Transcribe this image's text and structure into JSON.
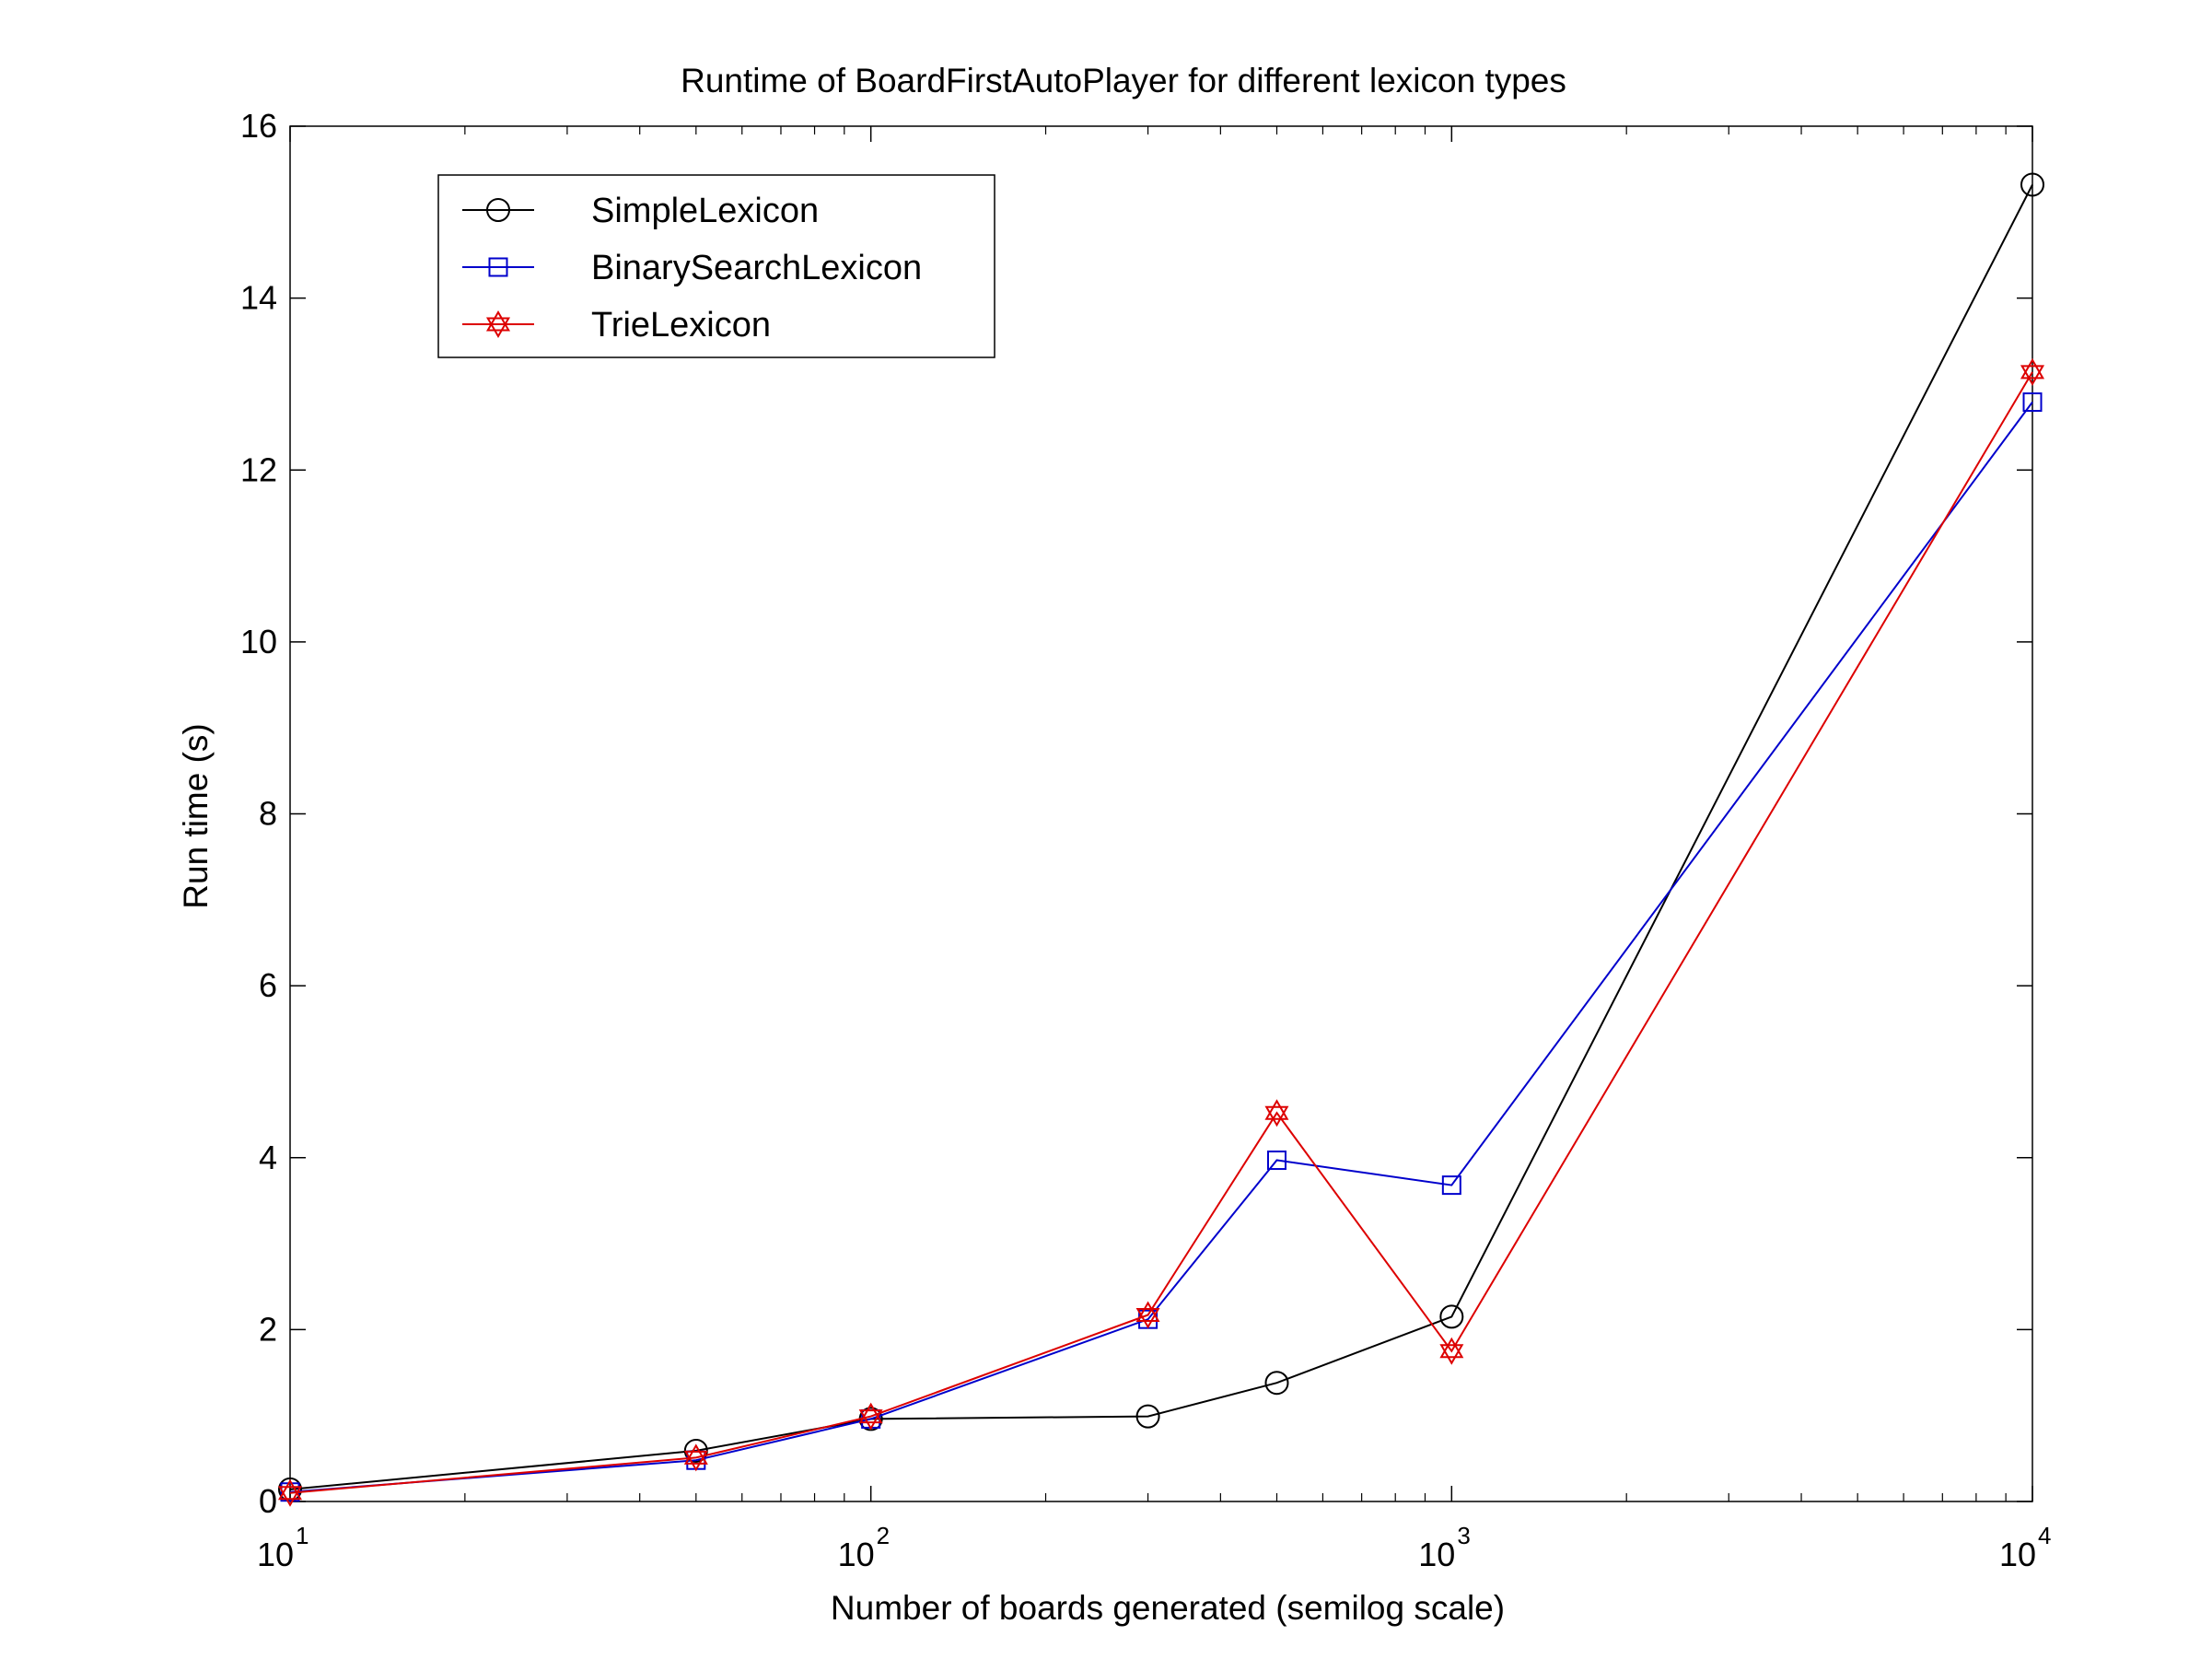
{
  "chart_data": {
    "type": "line",
    "title": "Runtime of BoardFirstAutoPlayer for different lexicon types",
    "xlabel": "Number of boards generated (semilog scale)",
    "ylabel": "Run time (s)",
    "xscale": "log",
    "xlim": [
      10,
      10000
    ],
    "ylim": [
      0,
      16
    ],
    "xticks": [
      {
        "value": 10,
        "base": "10",
        "exp": "1"
      },
      {
        "value": 100,
        "base": "10",
        "exp": "2"
      },
      {
        "value": 1000,
        "base": "10",
        "exp": "3"
      },
      {
        "value": 10000,
        "base": "10",
        "exp": "4"
      }
    ],
    "yticks": [
      0,
      2,
      4,
      6,
      8,
      10,
      12,
      14,
      16
    ],
    "ytick_labels": [
      "0",
      "2",
      "4",
      "6",
      "8",
      "10",
      "12",
      "14",
      "16"
    ],
    "grid": false,
    "legend": "top-left",
    "series": [
      {
        "name": "SimpleLexicon",
        "color": "#000000",
        "marker": "circle",
        "x": [
          10,
          50,
          100,
          300,
          500,
          1000,
          10000
        ],
        "y": [
          0.14,
          0.59,
          0.96,
          0.99,
          1.38,
          2.15,
          15.32
        ]
      },
      {
        "name": "BinarySearchLexicon",
        "color": "#0000cc",
        "marker": "square",
        "x": [
          10,
          50,
          100,
          300,
          500,
          1000,
          10000
        ],
        "y": [
          0.11,
          0.48,
          0.96,
          2.12,
          3.97,
          3.68,
          12.79
        ]
      },
      {
        "name": "TrieLexicon",
        "color": "#dd0000",
        "marker": "hexagram",
        "x": [
          10,
          50,
          100,
          300,
          500,
          1000,
          10000
        ],
        "y": [
          0.1,
          0.51,
          0.99,
          2.17,
          4.52,
          1.75,
          13.14
        ]
      }
    ]
  }
}
